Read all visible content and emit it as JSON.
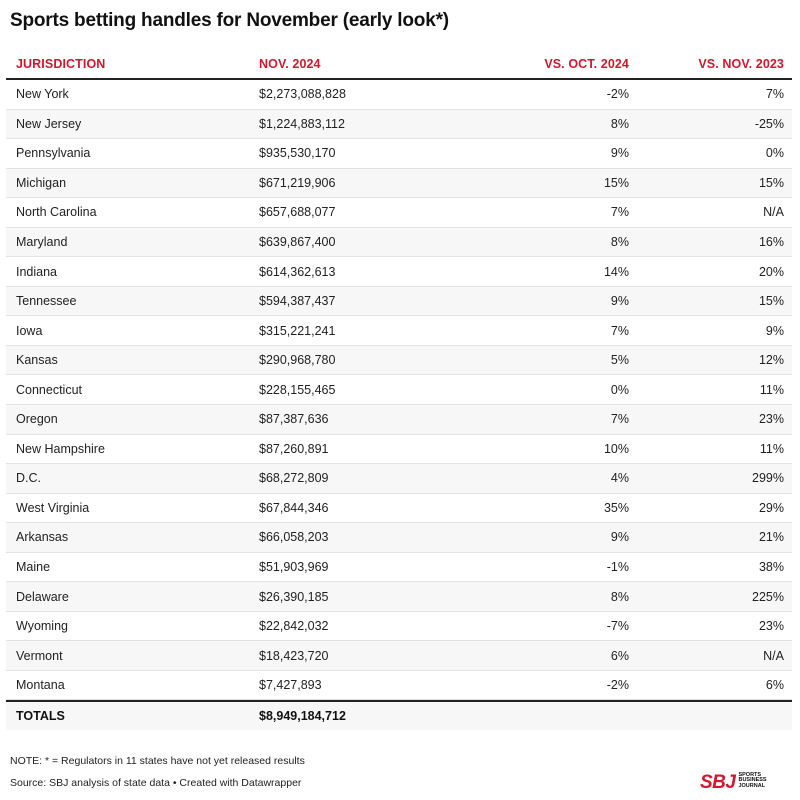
{
  "title": "Sports betting handles for November (early look*)",
  "columns": {
    "jurisdiction": "JURISDICTION",
    "nov2024": "NOV. 2024",
    "vs_oct2024": "VS. OCT. 2024",
    "vs_nov2023": "VS. NOV. 2023"
  },
  "rows": [
    {
      "jurisdiction": "New York",
      "nov2024": "$2,273,088,828",
      "vs_oct2024": "-2%",
      "vs_nov2023": "7%"
    },
    {
      "jurisdiction": "New Jersey",
      "nov2024": "$1,224,883,112",
      "vs_oct2024": "8%",
      "vs_nov2023": "-25%"
    },
    {
      "jurisdiction": "Pennsylvania",
      "nov2024": "$935,530,170",
      "vs_oct2024": "9%",
      "vs_nov2023": "0%"
    },
    {
      "jurisdiction": "Michigan",
      "nov2024": "$671,219,906",
      "vs_oct2024": "15%",
      "vs_nov2023": "15%"
    },
    {
      "jurisdiction": "North Carolina",
      "nov2024": "$657,688,077",
      "vs_oct2024": "7%",
      "vs_nov2023": "N/A"
    },
    {
      "jurisdiction": "Maryland",
      "nov2024": "$639,867,400",
      "vs_oct2024": "8%",
      "vs_nov2023": "16%"
    },
    {
      "jurisdiction": "Indiana",
      "nov2024": "$614,362,613",
      "vs_oct2024": "14%",
      "vs_nov2023": "20%"
    },
    {
      "jurisdiction": "Tennessee",
      "nov2024": "$594,387,437",
      "vs_oct2024": "9%",
      "vs_nov2023": "15%"
    },
    {
      "jurisdiction": "Iowa",
      "nov2024": "$315,221,241",
      "vs_oct2024": "7%",
      "vs_nov2023": "9%"
    },
    {
      "jurisdiction": "Kansas",
      "nov2024": "$290,968,780",
      "vs_oct2024": "5%",
      "vs_nov2023": "12%"
    },
    {
      "jurisdiction": "Connecticut",
      "nov2024": "$228,155,465",
      "vs_oct2024": "0%",
      "vs_nov2023": "11%"
    },
    {
      "jurisdiction": "Oregon",
      "nov2024": "$87,387,636",
      "vs_oct2024": "7%",
      "vs_nov2023": "23%"
    },
    {
      "jurisdiction": "New Hampshire",
      "nov2024": "$87,260,891",
      "vs_oct2024": "10%",
      "vs_nov2023": "11%"
    },
    {
      "jurisdiction": "D.C.",
      "nov2024": "$68,272,809",
      "vs_oct2024": "4%",
      "vs_nov2023": "299%"
    },
    {
      "jurisdiction": "West Virginia",
      "nov2024": "$67,844,346",
      "vs_oct2024": "35%",
      "vs_nov2023": "29%"
    },
    {
      "jurisdiction": "Arkansas",
      "nov2024": "$66,058,203",
      "vs_oct2024": "9%",
      "vs_nov2023": "21%"
    },
    {
      "jurisdiction": "Maine",
      "nov2024": "$51,903,969",
      "vs_oct2024": "-1%",
      "vs_nov2023": "38%"
    },
    {
      "jurisdiction": "Delaware",
      "nov2024": "$26,390,185",
      "vs_oct2024": "8%",
      "vs_nov2023": "225%"
    },
    {
      "jurisdiction": "Wyoming",
      "nov2024": "$22,842,032",
      "vs_oct2024": "-7%",
      "vs_nov2023": "23%"
    },
    {
      "jurisdiction": "Vermont",
      "nov2024": "$18,423,720",
      "vs_oct2024": "6%",
      "vs_nov2023": "N/A"
    },
    {
      "jurisdiction": "Montana",
      "nov2024": "$7,427,893",
      "vs_oct2024": "-2%",
      "vs_nov2023": "6%"
    }
  ],
  "totals": {
    "label": "TOTALS",
    "nov2024": "$8,949,184,712"
  },
  "note": "NOTE: * = Regulators in 11 states have not yet released results",
  "source": "Source: SBJ analysis of state data • Created with Datawrapper",
  "logo": {
    "mark": "SBJ",
    "sub": "SPORTS BUSINESS JOURNAL",
    "icon": "sbj-logo-icon"
  },
  "colors": {
    "accent": "#d3172c",
    "alt_row": "#f7f7f7"
  }
}
